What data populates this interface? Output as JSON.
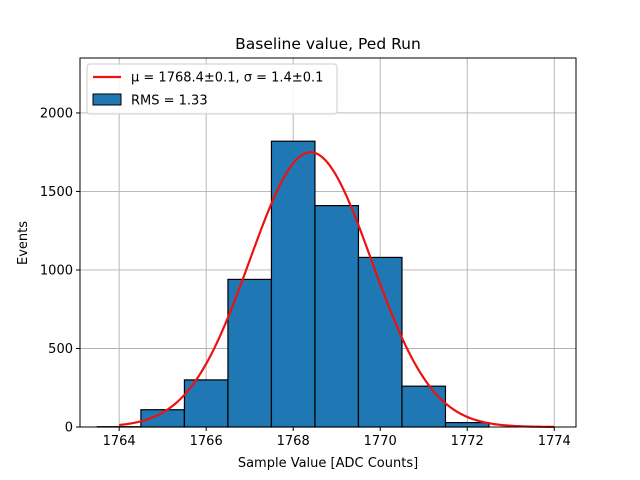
{
  "chart_data": {
    "type": "bar",
    "title": "Baseline value, Ped Run",
    "xlabel": "Sample Value [ADC Counts]",
    "ylabel": "Events",
    "xlim": [
      1763.1,
      1774.5
    ],
    "ylim": [
      0,
      2350
    ],
    "grid": true,
    "legend_placement": "top-left",
    "xticks": [
      1764,
      1766,
      1768,
      1770,
      1772,
      1774
    ],
    "yticks": [
      0,
      500,
      1000,
      1500,
      2000
    ],
    "bins": [
      {
        "x0": 1763.5,
        "x1": 1764.5,
        "count": 2
      },
      {
        "x0": 1764.5,
        "x1": 1765.5,
        "count": 110
      },
      {
        "x0": 1765.5,
        "x1": 1766.5,
        "count": 300
      },
      {
        "x0": 1766.5,
        "x1": 1767.5,
        "count": 940
      },
      {
        "x0": 1767.5,
        "x1": 1768.5,
        "count": 1820
      },
      {
        "x0": 1768.5,
        "x1": 1769.5,
        "count": 1410
      },
      {
        "x0": 1769.5,
        "x1": 1770.5,
        "count": 1080
      },
      {
        "x0": 1770.5,
        "x1": 1771.5,
        "count": 260
      },
      {
        "x0": 1771.5,
        "x1": 1772.5,
        "count": 28
      }
    ],
    "bar_color": "#1f77b4",
    "fit": {
      "mu": 1768.4,
      "sigma": 1.4,
      "amplitude": 1750,
      "x_range": [
        1764,
        1774
      ],
      "color": "#ee1111"
    },
    "legend": [
      {
        "label": "μ = 1768.4±0.1, σ = 1.4±0.1",
        "kind": "line",
        "color": "#ee1111"
      },
      {
        "label": "RMS = 1.33",
        "kind": "patch",
        "color": "#1f77b4"
      }
    ]
  }
}
